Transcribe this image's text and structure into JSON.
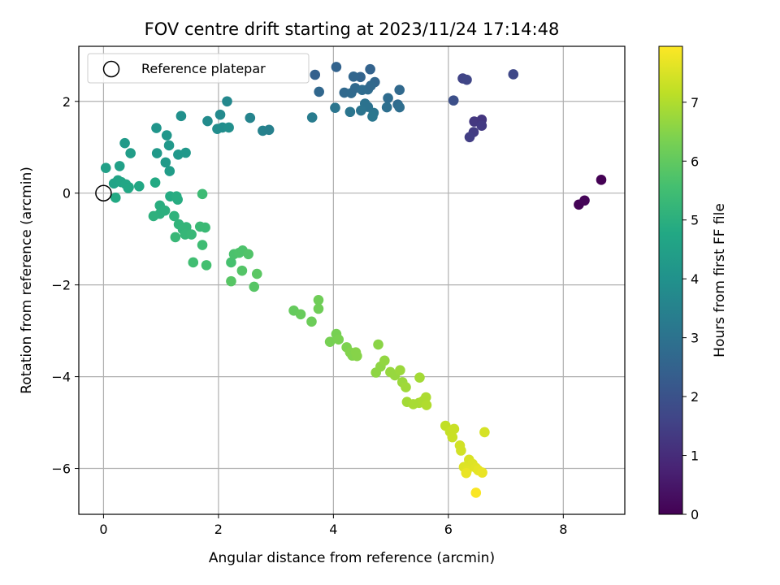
{
  "chart_data": {
    "type": "scatter",
    "title": "FOV centre drift starting at 2023/11/24 17:14:48",
    "xlabel": "Angular distance from reference (arcmin)",
    "ylabel": "Rotation from reference (arcmin)",
    "colorbar_label": "Hours from first FF file",
    "xlim": [
      -0.43,
      9.07
    ],
    "ylim": [
      -7.0,
      3.2
    ],
    "xticks": [
      0,
      2,
      4,
      6,
      8
    ],
    "yticks": [
      -6,
      -4,
      -2,
      0,
      2
    ],
    "xtick_labels": [
      "0",
      "2",
      "4",
      "6",
      "8"
    ],
    "ytick_labels": [
      "−6",
      "−4",
      "−2",
      "0",
      "2"
    ],
    "colorbar_range": [
      0,
      7.95
    ],
    "colorbar_ticks": [
      0,
      1,
      2,
      3,
      4,
      5,
      6,
      7
    ],
    "colorbar_tick_labels": [
      "0",
      "1",
      "2",
      "3",
      "4",
      "5",
      "6",
      "7"
    ],
    "colormap": "viridis",
    "grid": true,
    "legend": {
      "placement": "top-left",
      "label": "Reference platepar"
    },
    "reference_point": {
      "x": 0,
      "y": 0
    },
    "points": [
      {
        "x": 8.27,
        "y": -0.25,
        "c": 0.05
      },
      {
        "x": 8.37,
        "y": -0.16,
        "c": 0.1
      },
      {
        "x": 8.66,
        "y": 0.29,
        "c": 0.0
      },
      {
        "x": 7.13,
        "y": 2.59,
        "c": 1.7
      },
      {
        "x": 6.25,
        "y": 2.5,
        "c": 1.6
      },
      {
        "x": 6.32,
        "y": 2.47,
        "c": 1.65
      },
      {
        "x": 6.09,
        "y": 2.02,
        "c": 1.9
      },
      {
        "x": 6.45,
        "y": 1.56,
        "c": 1.3
      },
      {
        "x": 6.58,
        "y": 1.6,
        "c": 1.25
      },
      {
        "x": 6.58,
        "y": 1.47,
        "c": 1.35
      },
      {
        "x": 6.44,
        "y": 1.33,
        "c": 1.4
      },
      {
        "x": 6.37,
        "y": 1.22,
        "c": 1.45
      },
      {
        "x": 5.15,
        "y": 2.25,
        "c": 2.7
      },
      {
        "x": 4.95,
        "y": 2.07,
        "c": 2.8
      },
      {
        "x": 5.12,
        "y": 1.93,
        "c": 2.75
      },
      {
        "x": 5.15,
        "y": 1.87,
        "c": 2.85
      },
      {
        "x": 4.93,
        "y": 1.87,
        "c": 2.9
      },
      {
        "x": 4.72,
        "y": 2.42,
        "c": 2.6
      },
      {
        "x": 4.64,
        "y": 2.7,
        "c": 2.5
      },
      {
        "x": 4.47,
        "y": 2.53,
        "c": 2.55
      },
      {
        "x": 4.35,
        "y": 2.54,
        "c": 2.6
      },
      {
        "x": 4.05,
        "y": 2.75,
        "c": 2.5
      },
      {
        "x": 3.68,
        "y": 2.58,
        "c": 2.45
      },
      {
        "x": 3.75,
        "y": 2.21,
        "c": 2.65
      },
      {
        "x": 4.19,
        "y": 2.19,
        "c": 2.7
      },
      {
        "x": 4.31,
        "y": 2.18,
        "c": 2.75
      },
      {
        "x": 4.38,
        "y": 2.29,
        "c": 2.7
      },
      {
        "x": 4.5,
        "y": 2.25,
        "c": 2.8
      },
      {
        "x": 4.6,
        "y": 2.26,
        "c": 2.8
      },
      {
        "x": 4.65,
        "y": 2.34,
        "c": 2.7
      },
      {
        "x": 4.55,
        "y": 1.95,
        "c": 3.0
      },
      {
        "x": 4.6,
        "y": 1.88,
        "c": 3.0
      },
      {
        "x": 4.48,
        "y": 1.8,
        "c": 3.05
      },
      {
        "x": 4.7,
        "y": 1.75,
        "c": 3.1
      },
      {
        "x": 4.68,
        "y": 1.67,
        "c": 3.15
      },
      {
        "x": 4.29,
        "y": 1.77,
        "c": 3.1
      },
      {
        "x": 4.03,
        "y": 1.86,
        "c": 3.1
      },
      {
        "x": 3.63,
        "y": 1.65,
        "c": 3.3
      },
      {
        "x": 2.55,
        "y": 1.64,
        "c": 3.55
      },
      {
        "x": 2.77,
        "y": 1.36,
        "c": 3.5
      },
      {
        "x": 2.88,
        "y": 1.38,
        "c": 3.45
      },
      {
        "x": 2.15,
        "y": 2.0,
        "c": 3.7
      },
      {
        "x": 2.03,
        "y": 1.71,
        "c": 3.75
      },
      {
        "x": 1.81,
        "y": 1.57,
        "c": 3.8
      },
      {
        "x": 1.98,
        "y": 1.4,
        "c": 3.85
      },
      {
        "x": 2.07,
        "y": 1.43,
        "c": 3.85
      },
      {
        "x": 2.18,
        "y": 1.43,
        "c": 3.9
      },
      {
        "x": 1.35,
        "y": 1.68,
        "c": 3.95
      },
      {
        "x": 0.92,
        "y": 1.42,
        "c": 4.1
      },
      {
        "x": 1.1,
        "y": 1.26,
        "c": 4.15
      },
      {
        "x": 1.14,
        "y": 1.04,
        "c": 4.2
      },
      {
        "x": 0.93,
        "y": 0.87,
        "c": 4.25
      },
      {
        "x": 1.3,
        "y": 0.84,
        "c": 4.2
      },
      {
        "x": 1.43,
        "y": 0.88,
        "c": 4.2
      },
      {
        "x": 1.08,
        "y": 0.67,
        "c": 4.3
      },
      {
        "x": 1.15,
        "y": 0.48,
        "c": 4.35
      },
      {
        "x": 0.37,
        "y": 1.09,
        "c": 4.3
      },
      {
        "x": 0.47,
        "y": 0.87,
        "c": 4.4
      },
      {
        "x": 0.28,
        "y": 0.59,
        "c": 4.5
      },
      {
        "x": 0.04,
        "y": 0.55,
        "c": 4.5
      },
      {
        "x": 0.18,
        "y": 0.21,
        "c": 4.6
      },
      {
        "x": 0.25,
        "y": 0.28,
        "c": 4.6
      },
      {
        "x": 0.31,
        "y": 0.24,
        "c": 4.65
      },
      {
        "x": 0.39,
        "y": 0.19,
        "c": 4.7
      },
      {
        "x": 0.44,
        "y": 0.13,
        "c": 4.7
      },
      {
        "x": 0.43,
        "y": 0.11,
        "c": 4.75
      },
      {
        "x": 0.62,
        "y": 0.15,
        "c": 4.75
      },
      {
        "x": 0.9,
        "y": 0.23,
        "c": 4.8
      },
      {
        "x": 0.21,
        "y": -0.1,
        "c": 4.8
      },
      {
        "x": 1.16,
        "y": -0.07,
        "c": 4.85
      },
      {
        "x": 1.27,
        "y": -0.07,
        "c": 4.9
      },
      {
        "x": 1.29,
        "y": -0.14,
        "c": 4.9
      },
      {
        "x": 0.98,
        "y": -0.27,
        "c": 4.95
      },
      {
        "x": 1.07,
        "y": -0.38,
        "c": 5.0
      },
      {
        "x": 0.98,
        "y": -0.45,
        "c": 5.0
      },
      {
        "x": 0.87,
        "y": -0.5,
        "c": 5.05
      },
      {
        "x": 1.23,
        "y": -0.5,
        "c": 5.1
      },
      {
        "x": 1.31,
        "y": -0.68,
        "c": 5.15
      },
      {
        "x": 1.44,
        "y": -0.74,
        "c": 5.2
      },
      {
        "x": 1.38,
        "y": -0.79,
        "c": 5.2
      },
      {
        "x": 1.42,
        "y": -0.9,
        "c": 5.25
      },
      {
        "x": 1.53,
        "y": -0.9,
        "c": 5.3
      },
      {
        "x": 1.25,
        "y": -0.96,
        "c": 5.3
      },
      {
        "x": 1.68,
        "y": -0.73,
        "c": 5.35
      },
      {
        "x": 1.77,
        "y": -0.75,
        "c": 5.35
      },
      {
        "x": 1.72,
        "y": -0.02,
        "c": 5.4
      },
      {
        "x": 1.72,
        "y": -1.13,
        "c": 5.45
      },
      {
        "x": 1.56,
        "y": -1.51,
        "c": 5.5
      },
      {
        "x": 1.79,
        "y": -1.57,
        "c": 5.55
      },
      {
        "x": 2.22,
        "y": -1.51,
        "c": 5.6
      },
      {
        "x": 2.27,
        "y": -1.33,
        "c": 5.65
      },
      {
        "x": 2.36,
        "y": -1.3,
        "c": 5.7
      },
      {
        "x": 2.42,
        "y": -1.25,
        "c": 5.7
      },
      {
        "x": 2.52,
        "y": -1.33,
        "c": 5.75
      },
      {
        "x": 2.41,
        "y": -1.69,
        "c": 5.8
      },
      {
        "x": 2.22,
        "y": -1.92,
        "c": 5.85
      },
      {
        "x": 2.62,
        "y": -2.04,
        "c": 5.85
      },
      {
        "x": 2.67,
        "y": -1.76,
        "c": 5.9
      },
      {
        "x": 3.31,
        "y": -2.56,
        "c": 6.05
      },
      {
        "x": 3.43,
        "y": -2.64,
        "c": 6.1
      },
      {
        "x": 3.62,
        "y": -2.8,
        "c": 6.15
      },
      {
        "x": 3.74,
        "y": -2.33,
        "c": 6.2
      },
      {
        "x": 3.74,
        "y": -2.52,
        "c": 6.2
      },
      {
        "x": 3.94,
        "y": -3.24,
        "c": 6.3
      },
      {
        "x": 4.05,
        "y": -3.07,
        "c": 6.3
      },
      {
        "x": 4.09,
        "y": -3.19,
        "c": 6.35
      },
      {
        "x": 4.23,
        "y": -3.36,
        "c": 6.4
      },
      {
        "x": 4.29,
        "y": -3.47,
        "c": 6.45
      },
      {
        "x": 4.33,
        "y": -3.54,
        "c": 6.45
      },
      {
        "x": 4.39,
        "y": -3.47,
        "c": 6.5
      },
      {
        "x": 4.41,
        "y": -3.55,
        "c": 6.5
      },
      {
        "x": 4.78,
        "y": -3.3,
        "c": 6.55
      },
      {
        "x": 4.74,
        "y": -3.91,
        "c": 6.6
      },
      {
        "x": 4.82,
        "y": -3.78,
        "c": 6.6
      },
      {
        "x": 4.89,
        "y": -3.65,
        "c": 6.65
      },
      {
        "x": 4.99,
        "y": -3.9,
        "c": 6.7
      },
      {
        "x": 5.07,
        "y": -3.97,
        "c": 6.7
      },
      {
        "x": 5.16,
        "y": -3.86,
        "c": 6.75
      },
      {
        "x": 5.2,
        "y": -4.12,
        "c": 6.75
      },
      {
        "x": 5.26,
        "y": -4.23,
        "c": 6.8
      },
      {
        "x": 5.5,
        "y": -4.02,
        "c": 6.85
      },
      {
        "x": 5.28,
        "y": -4.55,
        "c": 6.85
      },
      {
        "x": 5.39,
        "y": -4.6,
        "c": 6.9
      },
      {
        "x": 5.49,
        "y": -4.57,
        "c": 6.9
      },
      {
        "x": 5.56,
        "y": -4.53,
        "c": 6.95
      },
      {
        "x": 5.61,
        "y": -4.45,
        "c": 6.95
      },
      {
        "x": 5.62,
        "y": -4.62,
        "c": 7.0
      },
      {
        "x": 5.95,
        "y": -5.07,
        "c": 7.2
      },
      {
        "x": 6.03,
        "y": -5.2,
        "c": 7.25
      },
      {
        "x": 6.07,
        "y": -5.32,
        "c": 7.3
      },
      {
        "x": 6.1,
        "y": -5.14,
        "c": 7.3
      },
      {
        "x": 6.2,
        "y": -5.5,
        "c": 7.4
      },
      {
        "x": 6.22,
        "y": -5.61,
        "c": 7.4
      },
      {
        "x": 6.63,
        "y": -5.21,
        "c": 7.45
      },
      {
        "x": 6.36,
        "y": -5.81,
        "c": 7.5
      },
      {
        "x": 6.42,
        "y": -5.9,
        "c": 7.55
      },
      {
        "x": 6.27,
        "y": -5.97,
        "c": 7.55
      },
      {
        "x": 6.32,
        "y": -6.05,
        "c": 7.6
      },
      {
        "x": 6.48,
        "y": -5.99,
        "c": 7.6
      },
      {
        "x": 6.52,
        "y": -6.04,
        "c": 7.65
      },
      {
        "x": 6.59,
        "y": -6.09,
        "c": 7.7
      },
      {
        "x": 6.31,
        "y": -6.1,
        "c": 7.7
      },
      {
        "x": 6.48,
        "y": -6.53,
        "c": 7.9
      }
    ]
  }
}
